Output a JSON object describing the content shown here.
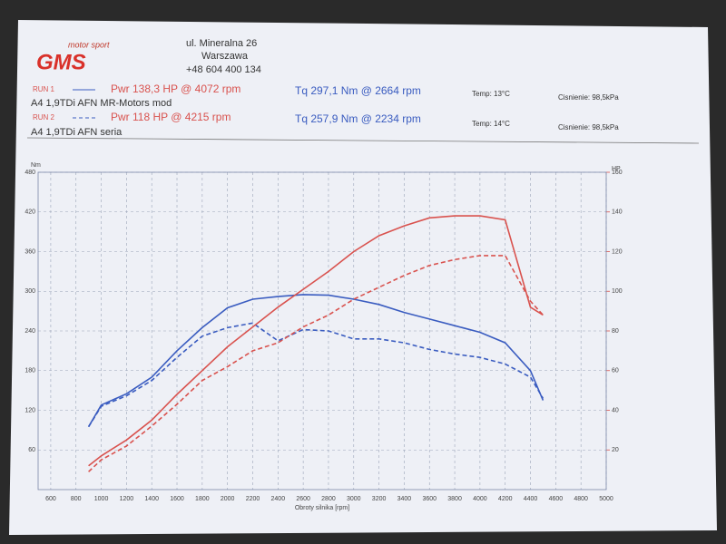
{
  "header": {
    "brand": "motor sport",
    "logo": "GMS",
    "address": "ul. Mineralna 26",
    "city": "Warszawa",
    "phone": "+48 604 400 134",
    "runs": [
      {
        "run": "RUN 1",
        "power": "Pwr 138,3 HP @ 4072 rpm",
        "torque": "Tq 297,1 Nm @ 2664 rpm",
        "temp": "Temp: 13°C",
        "pressure": "Cisnienie: 98,5kPa",
        "car": "A4 1,9TDi AFN MR-Motors mod"
      },
      {
        "run": "RUN 2",
        "power": "Pwr 118 HP @ 4215 rpm",
        "torque": "Tq 257,9 Nm @ 2234 rpm",
        "temp": "Temp: 14°C",
        "pressure": "Cisnienie: 98,5kPa",
        "car": "A4 1,9TDi AFN seria"
      }
    ]
  },
  "chart_data": {
    "type": "line",
    "x_label": "Obroty silnika [rpm]",
    "y_label": "Nm",
    "y2_label": "HP",
    "x": [
      900,
      1000,
      1200,
      1400,
      1600,
      1800,
      2000,
      2200,
      2400,
      2600,
      2800,
      3000,
      3200,
      3400,
      3600,
      3800,
      4000,
      4200,
      4400,
      4500
    ],
    "series": [
      {
        "name": "RUN 1",
        "color": "#3a5cc0",
        "dash": "solid",
        "values": [
          95,
          128,
          145,
          170,
          210,
          245,
          275,
          288,
          292,
          295,
          294,
          288,
          280,
          268,
          258,
          248,
          238,
          222,
          180,
          135
        ]
      },
      {
        "name": "RUN 2",
        "color": "#3a5cc0",
        "dash": "dashed",
        "values": [
          95,
          126,
          142,
          165,
          200,
          232,
          245,
          252,
          225,
          242,
          240,
          228,
          228,
          222,
          212,
          205,
          200,
          190,
          170,
          138
        ]
      },
      {
        "name": "RUN 1",
        "color": "#d9524e",
        "dash": "solid",
        "axis": "y2",
        "values": [
          12,
          17,
          25,
          35,
          48,
          60,
          72,
          82,
          92,
          101,
          110,
          120,
          128,
          133,
          137,
          138,
          138,
          136,
          92,
          88
        ]
      },
      {
        "name": "RUN 2",
        "color": "#d9524e",
        "dash": "dashed",
        "axis": "y2",
        "values": [
          9,
          15,
          22,
          32,
          43,
          55,
          62,
          70,
          74,
          82,
          88,
          96,
          102,
          108,
          113,
          116,
          118,
          118,
          95,
          88
        ]
      }
    ],
    "xlim": [
      500,
      5000
    ],
    "xticks": [
      600,
      800,
      1000,
      1200,
      1400,
      1600,
      1800,
      2000,
      2200,
      2400,
      2600,
      2800,
      3000,
      3200,
      3400,
      3600,
      3800,
      4000,
      4200,
      4400,
      4600,
      4800,
      5000
    ],
    "ylim": [
      0,
      480
    ],
    "yticks": [
      60,
      120,
      180,
      240,
      300,
      360,
      420,
      480
    ],
    "y2lim": [
      0,
      160
    ],
    "y2ticks": [
      20,
      40,
      60,
      80,
      100,
      120,
      140,
      160
    ],
    "grid": true
  }
}
